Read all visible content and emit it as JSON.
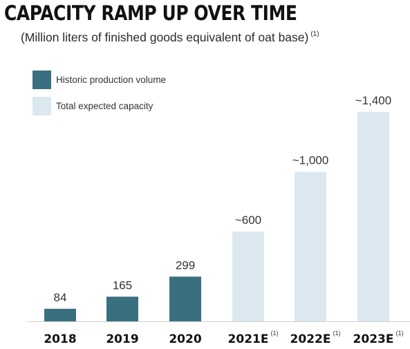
{
  "header": {
    "title": "CAPACITY RAMP UP OVER TIME",
    "subtitle": "(Million liters of finished goods equivalent of oat base)",
    "subtitle_note": "(1)"
  },
  "legend": {
    "items": [
      {
        "label": "Historic production volume",
        "color": "#3a6f80"
      },
      {
        "label": "Total expected capacity",
        "color": "#dbe8ef"
      }
    ]
  },
  "chart_data": {
    "type": "bar",
    "title": "CAPACITY RAMP UP OVER TIME",
    "subtitle": "(Million liters of finished goods equivalent of oat base)",
    "categories": [
      "2018",
      "2019",
      "2020",
      "2021E",
      "2022E",
      "2023E"
    ],
    "category_notes": [
      "",
      "",
      "",
      "(1)",
      "(1)",
      "(1)"
    ],
    "values": [
      84,
      165,
      299,
      600,
      1000,
      1400
    ],
    "value_labels": [
      "84",
      "165",
      "299",
      "~600",
      "~1,000",
      "~1,400"
    ],
    "series_type": [
      "Historic production volume",
      "Historic production volume",
      "Historic production volume",
      "Total expected capacity",
      "Total expected capacity",
      "Total expected capacity"
    ],
    "colors": {
      "Historic production volume": "#3a6f80",
      "Total expected capacity": "#dbe8ef"
    },
    "ylim": [
      0,
      1400
    ],
    "grid": false,
    "legend_position": "top-left"
  }
}
